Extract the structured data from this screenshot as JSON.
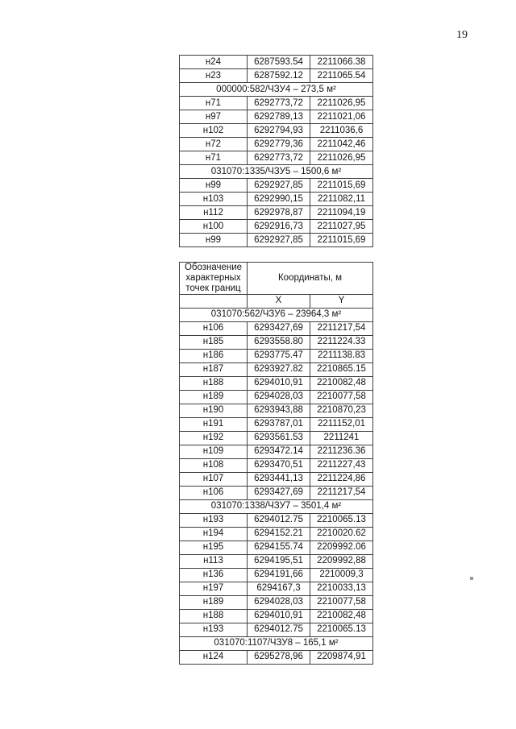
{
  "page": {
    "number": "19"
  },
  "upper_table": {
    "rows": [
      {
        "type": "data",
        "label": "н24",
        "x": "6287593.54",
        "y": "2211066.38"
      },
      {
        "type": "data",
        "label": "н23",
        "x": "6287592.12",
        "y": "2211065.54"
      },
      {
        "type": "section",
        "label": "000000:582/ЧЗУ4 – 273,5 м²"
      },
      {
        "type": "data",
        "label": "н71",
        "x": "6292773,72",
        "y": "2211026,95"
      },
      {
        "type": "data",
        "label": "н97",
        "x": "6292789,13",
        "y": "2211021,06"
      },
      {
        "type": "data",
        "label": "н102",
        "x": "6292794,93",
        "y": "2211036,6"
      },
      {
        "type": "data",
        "label": "н72",
        "x": "6292779,36",
        "y": "2211042,46"
      },
      {
        "type": "data",
        "label": "н71",
        "x": "6292773,72",
        "y": "2211026,95"
      },
      {
        "type": "section",
        "label": "031070:1335/ЧЗУ5 – 1500,6 м²"
      },
      {
        "type": "data",
        "label": "н99",
        "x": "6292927,85",
        "y": "2211015,69"
      },
      {
        "type": "data",
        "label": "н103",
        "x": "6292990,15",
        "y": "2211082,11"
      },
      {
        "type": "data",
        "label": "н112",
        "x": "6292978,87",
        "y": "2211094,19"
      },
      {
        "type": "data",
        "label": "н100",
        "x": "6292916,73",
        "y": "2211027,95"
      },
      {
        "type": "data",
        "label": "н99",
        "x": "6292927,85",
        "y": "2211015,69"
      }
    ]
  },
  "lower_table": {
    "header": {
      "points_label": "Обозначение характерных точек границ",
      "coords_label": "Координаты, м",
      "x_label": "X",
      "y_label": "Y"
    },
    "rows": [
      {
        "type": "section",
        "label": "031070:562/ЧЗУ6 – 23964,3 м²"
      },
      {
        "type": "data",
        "label": "н106",
        "x": "6293427,69",
        "y": "2211217,54"
      },
      {
        "type": "data",
        "label": "н185",
        "x": "6293558.80",
        "y": "2211224.33"
      },
      {
        "type": "data",
        "label": "н186",
        "x": "6293775.47",
        "y": "2211138.83"
      },
      {
        "type": "data",
        "label": "н187",
        "x": "6293927.82",
        "y": "2210865.15"
      },
      {
        "type": "data",
        "label": "н188",
        "x": "6294010,91",
        "y": "2210082,48"
      },
      {
        "type": "data",
        "label": "н189",
        "x": "6294028,03",
        "y": "2210077,58"
      },
      {
        "type": "data",
        "label": "н190",
        "x": "6293943,88",
        "y": "2210870,23"
      },
      {
        "type": "data",
        "label": "н191",
        "x": "6293787,01",
        "y": "2211152,01"
      },
      {
        "type": "data",
        "label": "н192",
        "x": "6293561.53",
        "y": "2211241"
      },
      {
        "type": "data",
        "label": "н109",
        "x": "6293472.14",
        "y": "2211236.36"
      },
      {
        "type": "data",
        "label": "н108",
        "x": "6293470,51",
        "y": "2211227,43"
      },
      {
        "type": "data",
        "label": "н107",
        "x": "6293441,13",
        "y": "2211224,86"
      },
      {
        "type": "data",
        "label": "н106",
        "x": "6293427,69",
        "y": "2211217,54"
      },
      {
        "type": "section",
        "label": "031070:1338/ЧЗУ7 – 3501,4 м²"
      },
      {
        "type": "data",
        "label": "н193",
        "x": "6294012.75",
        "y": "2210065.13"
      },
      {
        "type": "data",
        "label": "н194",
        "x": "6294152.21",
        "y": "2210020.62"
      },
      {
        "type": "data",
        "label": "н195",
        "x": "6294155.74",
        "y": "2209992.06"
      },
      {
        "type": "data",
        "label": "н113",
        "x": "6294195,51",
        "y": "2209992,88"
      },
      {
        "type": "data",
        "label": "н136",
        "x": "6294191,66",
        "y": "2210009,3"
      },
      {
        "type": "data",
        "label": "н197",
        "x": "6294167,3",
        "y": "2210033,13"
      },
      {
        "type": "data",
        "label": "н189",
        "x": "6294028,03",
        "y": "2210077,58"
      },
      {
        "type": "data",
        "label": "н188",
        "x": "6294010,91",
        "y": "2210082,48"
      },
      {
        "type": "data",
        "label": "н193",
        "x": "6294012.75",
        "y": "2210065.13"
      },
      {
        "type": "section",
        "label": "031070:1107/ЧЗУ8 – 165,1 м²"
      },
      {
        "type": "data",
        "label": "н124",
        "x": "6295278,96",
        "y": "2209874,91"
      }
    ]
  }
}
